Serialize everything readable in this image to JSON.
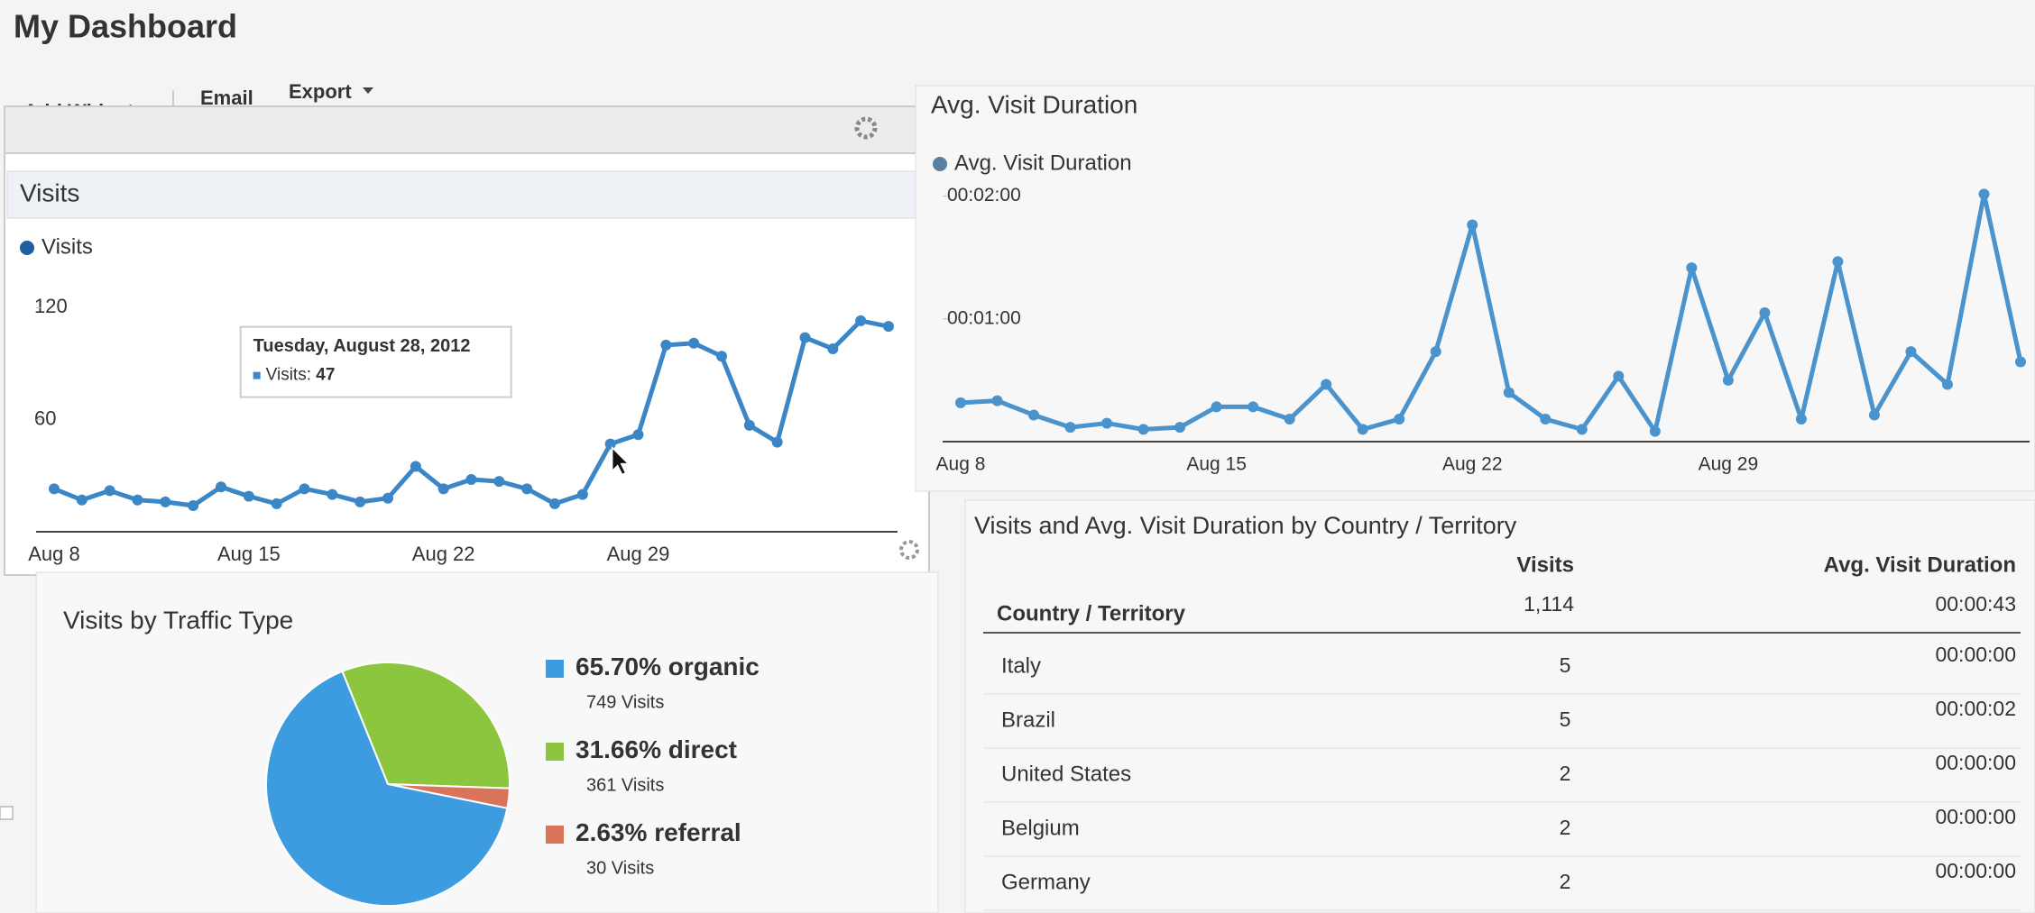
{
  "header": {
    "title": "My Dashboard"
  },
  "toolbar": {
    "items": [
      "+ Add Widget",
      "Email",
      "Export"
    ]
  },
  "chart_data": [
    {
      "type": "line",
      "title": "Visits",
      "categories": [
        "Aug 8",
        null,
        null,
        null,
        null,
        null,
        null,
        "Aug 15",
        null,
        null,
        null,
        null,
        null,
        null,
        "Aug 22",
        null,
        null,
        null,
        null,
        null,
        null,
        "Aug 29",
        null,
        null,
        null,
        null,
        null,
        null,
        null,
        null,
        null
      ],
      "series": [
        {
          "name": "Visits",
          "color": "#3a86c6",
          "values": [
            23,
            17,
            22,
            17,
            16,
            14,
            24,
            19,
            15,
            23,
            20,
            16,
            18,
            35,
            23,
            28,
            27,
            23,
            15,
            20,
            47,
            52,
            100,
            101,
            94,
            57,
            48,
            104,
            98,
            113,
            110
          ]
        }
      ],
      "ylim": [
        0,
        140
      ],
      "yticks": [
        60,
        120
      ],
      "grid": false,
      "tooltip": {
        "title": "Tuesday, August 28, 2012",
        "label": "Visits:"
      }
    },
    {
      "type": "line",
      "title": "Avg. Visit Duration",
      "categories": [
        "Aug 8",
        null,
        null,
        null,
        null,
        null,
        null,
        "Aug 15",
        null,
        null,
        null,
        null,
        null,
        null,
        "Aug 22",
        null,
        null,
        null,
        null,
        null,
        null,
        "Aug 29",
        null,
        null,
        null,
        null,
        null,
        null,
        null,
        null
      ],
      "series": [
        {
          "name": "Avg. Visit Duration",
          "color": "#4a93cc",
          "values": [
            19,
            20,
            13,
            7,
            9,
            6,
            7,
            17,
            17,
            11,
            28,
            6,
            11,
            44,
            106,
            24,
            11,
            6,
            32,
            5,
            85,
            30,
            63,
            11,
            88,
            13,
            44,
            28,
            121,
            39
          ]
        }
      ],
      "ylim": [
        0,
        130
      ],
      "yticks": [
        {
          "value": 60,
          "label": "00:01:00"
        },
        {
          "value": 120,
          "label": "00:02:00"
        }
      ],
      "grid": false
    },
    {
      "type": "pie",
      "title": "Visits by Traffic Type",
      "categories": [
        "organic",
        "direct",
        "referral"
      ],
      "values": [
        65.7,
        31.66,
        2.63
      ],
      "value_labels": [
        "65.70%",
        "31.66%",
        "2.63%"
      ],
      "visits_labels": [
        "749 Visits",
        "361 Visits",
        "30 Visits"
      ],
      "colors": [
        "#3d9be0",
        "#8cc63f",
        "#d9735a"
      ]
    }
  ],
  "table": {
    "title": "Visits and Avg. Visit Duration by Country / Territory",
    "columns": [
      "Country / Territory",
      "Visits",
      "Avg. Visit Duration"
    ],
    "total": [
      "1,114",
      "00:00:43"
    ],
    "rows": [
      [
        "Italy",
        "5",
        "00:00:00"
      ],
      [
        "Brazil",
        "5",
        "00:00:02"
      ],
      [
        "United States",
        "2",
        "00:00:00"
      ],
      [
        "Belgium",
        "2",
        "00:00:00"
      ],
      [
        "Germany",
        "2",
        "00:00:00"
      ]
    ]
  }
}
